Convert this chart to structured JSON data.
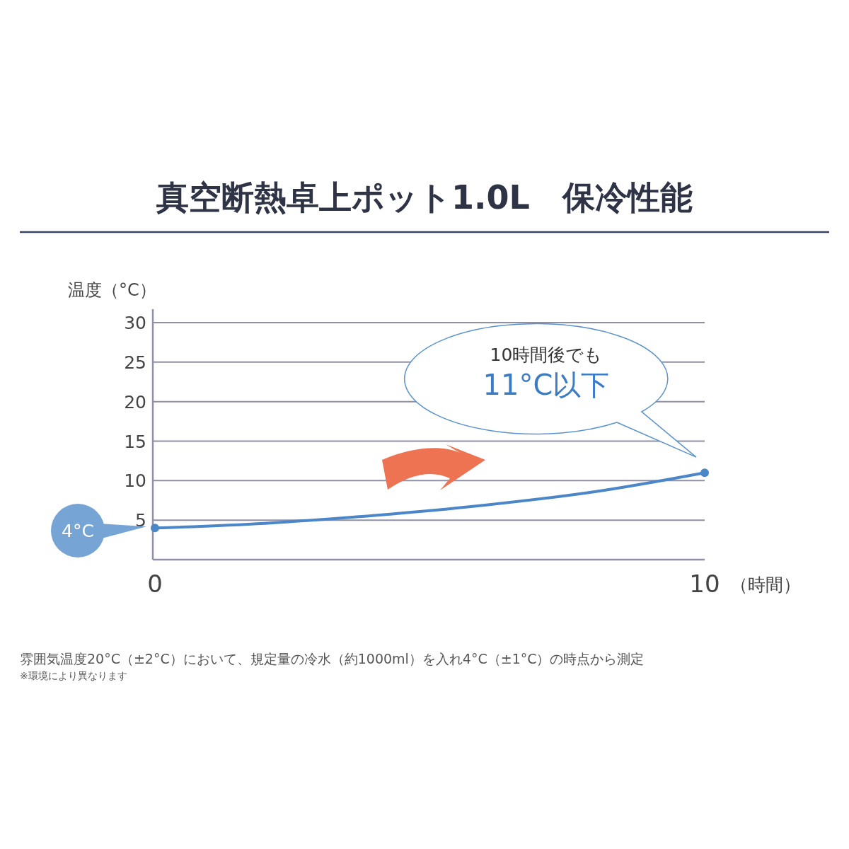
{
  "chart_data": {
    "type": "line",
    "title": "真空断熱卓上ポット1.0L　保冷性能",
    "ylabel": "温度（°C）",
    "xlabel": "（時間）",
    "x": [
      0,
      2,
      4,
      6,
      8,
      10
    ],
    "xlim": [
      0,
      10
    ],
    "xticks": [
      0,
      10
    ],
    "ylim": [
      0,
      30
    ],
    "yticks": [
      5,
      10,
      15,
      20,
      25,
      30
    ],
    "grid": "y",
    "series": [
      {
        "color": "#4a86c8",
        "values": [
          4,
          4.6,
          5.6,
          6.9,
          8.6,
          11
        ],
        "marker": "none",
        "line_style": "solid"
      },
      {
        "type": "scatter",
        "color": "#4a86c8",
        "x": [
          0,
          10
        ],
        "values": [
          4,
          11
        ],
        "marker": "circle"
      }
    ],
    "annotations": [
      "4°C",
      "10時間後でも\n11°C以下",
      "雰囲気温度20°C（±2°C）において、規定量の冷水（約1000ml）を入れ4°C（±1°C）の時点から測定",
      "※環境により異なります"
    ]
  }
}
